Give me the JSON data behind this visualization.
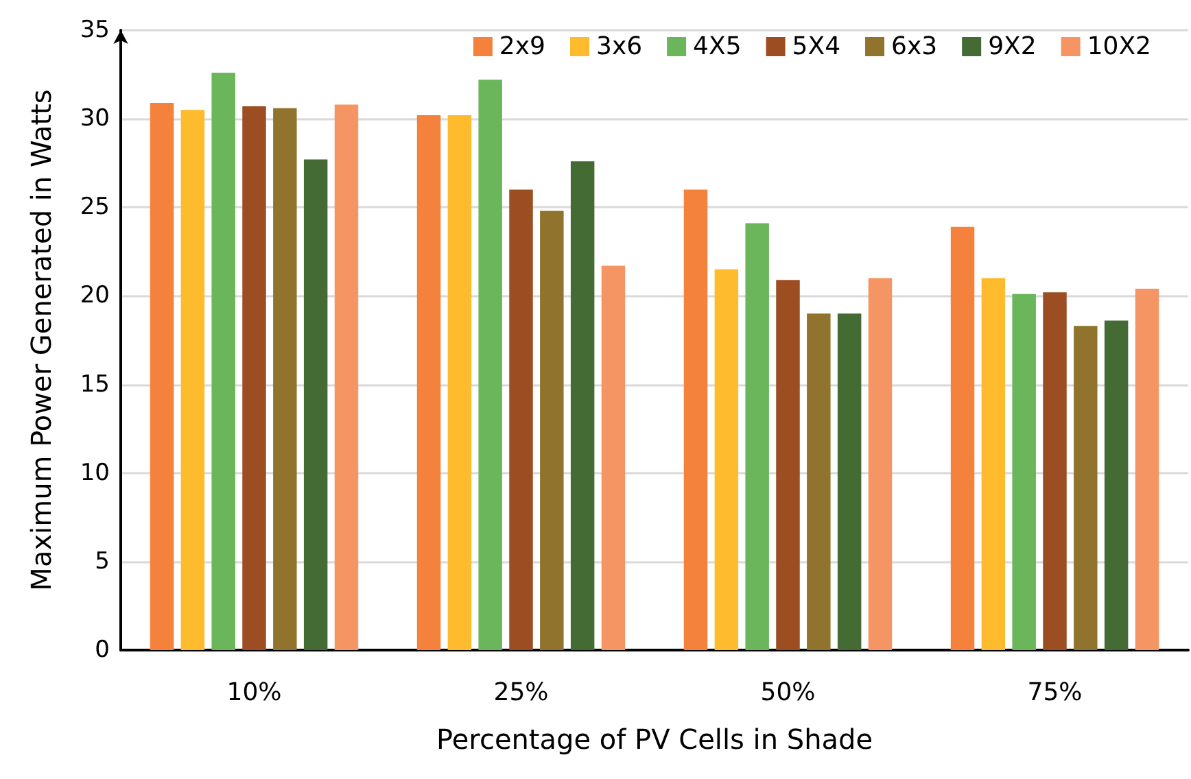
{
  "chart_data": {
    "type": "bar",
    "xlabel": "Percentage of PV Cells in Shade",
    "ylabel": "Maximum Power Generated in Watts",
    "categories": [
      "10%",
      "25%",
      "50%",
      "75%"
    ],
    "series": [
      {
        "name": "2x9",
        "color": "#f4813c",
        "values": [
          30.9,
          30.2,
          26.0,
          23.9
        ]
      },
      {
        "name": "3x6",
        "color": "#fdbb2d",
        "values": [
          30.5,
          30.2,
          21.5,
          21.0
        ]
      },
      {
        "name": "4X5",
        "color": "#6bb55a",
        "values": [
          32.6,
          32.2,
          24.1,
          20.1
        ]
      },
      {
        "name": "5X4",
        "color": "#9c4e22",
        "values": [
          30.7,
          26.0,
          20.9,
          20.2
        ]
      },
      {
        "name": "6x3",
        "color": "#90742d",
        "values": [
          30.6,
          24.8,
          19.0,
          18.3
        ]
      },
      {
        "name": "9X2",
        "color": "#456b35",
        "values": [
          27.7,
          27.6,
          19.0,
          18.6
        ]
      },
      {
        "name": "10X2",
        "color": "#f59563",
        "values": [
          30.8,
          21.7,
          21.0,
          20.4
        ]
      }
    ],
    "ylim": [
      0,
      35
    ],
    "yticks": [
      0,
      5,
      10,
      15,
      20,
      25,
      30,
      35
    ],
    "grid": "y",
    "legend": "top right"
  }
}
